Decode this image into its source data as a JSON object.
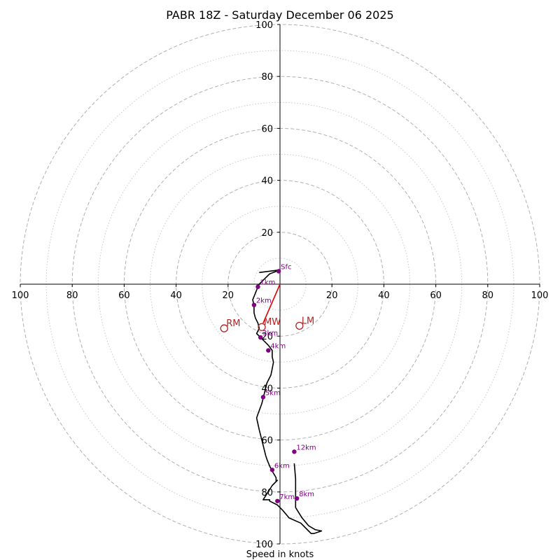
{
  "chart_data": {
    "type": "scatter",
    "title": "PABR 18Z - Saturday December 06 2025",
    "xlabel": "Speed in knots",
    "ylabel": "",
    "xlim": [
      -100,
      100
    ],
    "ylim": [
      -100,
      100
    ],
    "grid": true,
    "major_rings": [
      20,
      40,
      60,
      80,
      100
    ],
    "minor_rings": [
      10,
      30,
      50,
      70,
      90
    ],
    "x_tick_labels": [
      "100",
      "80",
      "60",
      "40",
      "20",
      "20",
      "40",
      "60",
      "80",
      "100"
    ],
    "x_tick_values": [
      -100,
      -80,
      -60,
      -40,
      -20,
      20,
      40,
      60,
      80,
      100
    ],
    "y_tick_labels_up": [
      "20",
      "40",
      "60",
      "80",
      "100"
    ],
    "y_tick_values_up": [
      20,
      40,
      60,
      80,
      100
    ],
    "y_tick_labels_down": [
      "20",
      "40",
      "60",
      "80",
      "100"
    ],
    "y_tick_values_down": [
      -20,
      -40,
      -60,
      -80,
      -100
    ],
    "hodograph": {
      "x": [
        -8,
        -4,
        0,
        -4,
        -8,
        -8.5,
        -10.5,
        -10,
        -10,
        -9.5,
        -8.5,
        -8,
        -9,
        -7.5,
        -6,
        -4.5,
        -3,
        -3,
        -2.5,
        -3,
        -3.5,
        -5,
        -6,
        -7,
        -8.5,
        -9,
        -8,
        -6.5,
        -5.5,
        -5,
        -4,
        -3,
        -1.5,
        -1.5,
        -1.5,
        -1,
        -3,
        -6.5,
        -4,
        -4,
        -1,
        1,
        3.5,
        8,
        11,
        12,
        13,
        16,
        13.5,
        11,
        8.5,
        6,
        6,
        6,
        5.5
      ],
      "y": [
        4.5,
        5,
        5.5,
        4,
        0,
        -1,
        -6,
        -8,
        -11,
        -13,
        -15,
        -17,
        -19,
        -20.5,
        -22,
        -23.5,
        -25.5,
        -28,
        -30,
        -32.5,
        -35,
        -38,
        -42,
        -46,
        -50,
        -51.5,
        -56,
        -62,
        -66,
        -67.5,
        -70,
        -72,
        -74.5,
        -75.5,
        -76,
        -75.5,
        -77.5,
        -83,
        -83,
        -83.5,
        -85,
        -87,
        -90,
        -92,
        -95,
        -96,
        -96,
        -95,
        -94.5,
        -93,
        -90,
        -86,
        -83,
        -75,
        -69
      ]
    },
    "height_markers": [
      {
        "label": "Sfc",
        "x": -0.5,
        "y": 5
      },
      {
        "label": "1km",
        "x": -8.5,
        "y": -1
      },
      {
        "label": "2km",
        "x": -10,
        "y": -8
      },
      {
        "label": "3km",
        "x": -7.5,
        "y": -20.5
      },
      {
        "label": "4km",
        "x": -4.5,
        "y": -25.5
      },
      {
        "label": "5km",
        "x": -6.5,
        "y": -43.5
      },
      {
        "label": "6km",
        "x": -3,
        "y": -71.5
      },
      {
        "label": "7km",
        "x": -1,
        "y": -83.5
      },
      {
        "label": "8km",
        "x": 6.5,
        "y": -82.5
      },
      {
        "label": "12km",
        "x": 5.5,
        "y": -64.5
      }
    ],
    "motion_markers": [
      {
        "label": "MW",
        "x": -7,
        "y": -16.5
      },
      {
        "label": "RM",
        "x": -21.5,
        "y": -17
      },
      {
        "label": "LM",
        "x": 7.5,
        "y": -16
      }
    ],
    "mean_wind_vector": {
      "x": -6.5,
      "y": -15
    },
    "colors": {
      "trace": "#000000",
      "height_markers": "#800080",
      "motion": "#b22222",
      "mean_wind_vector": "#e00000",
      "grid": "#b0b0b0"
    }
  }
}
